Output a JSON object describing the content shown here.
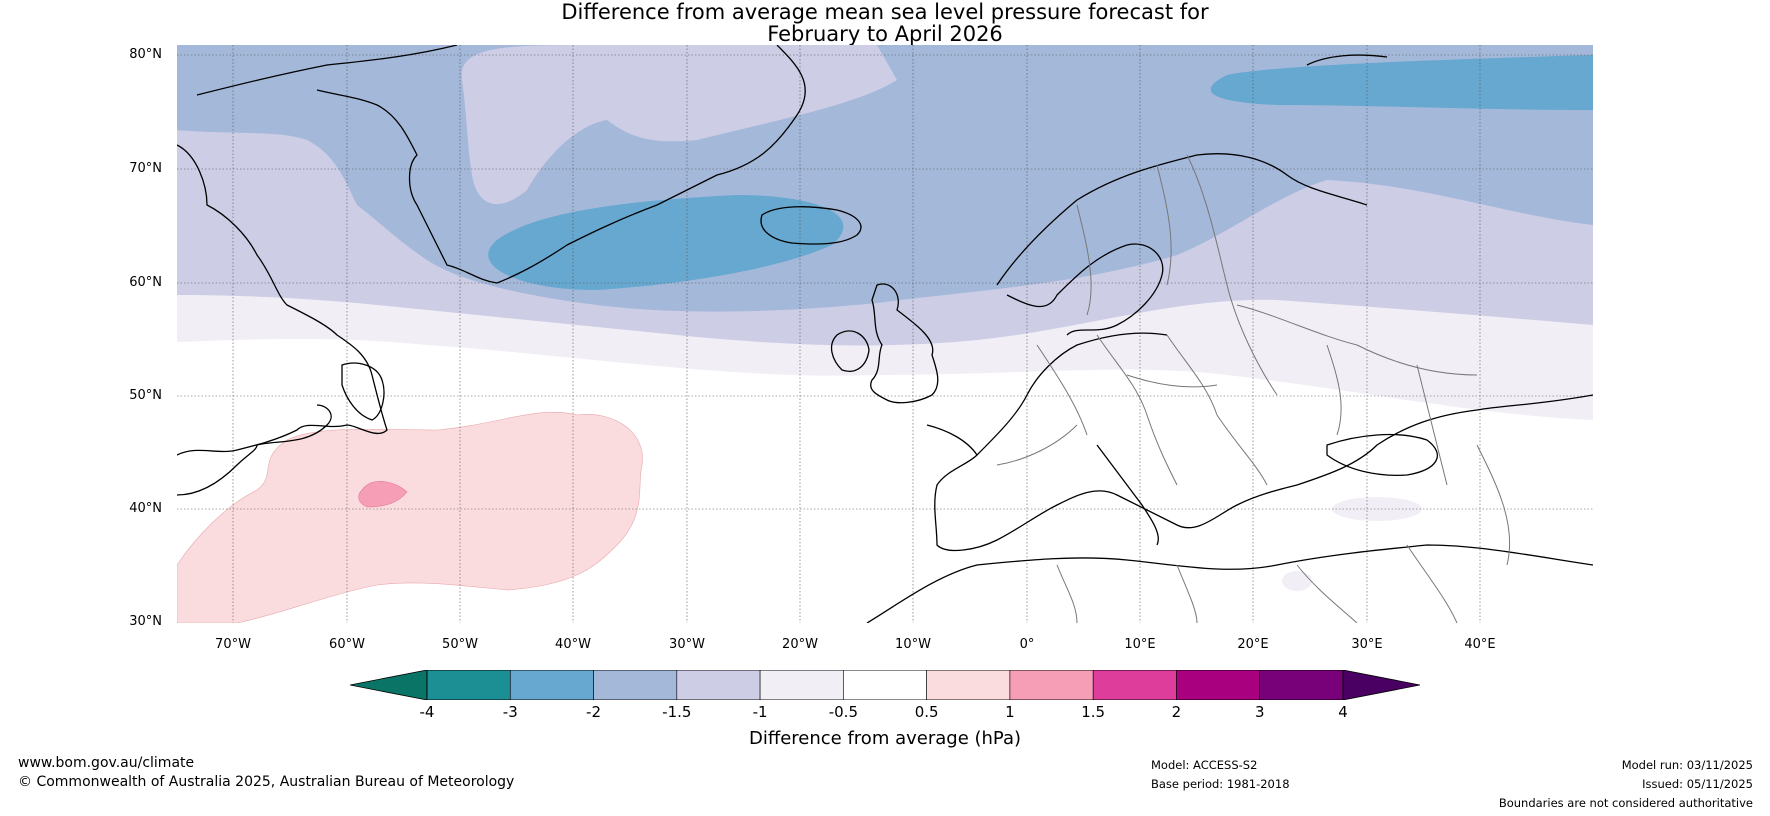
{
  "title_line1": "Difference from average mean sea level pressure forecast for",
  "title_line2": "February to April 2026",
  "lat_labels": [
    "80°N",
    "70°N",
    "60°N",
    "50°N",
    "40°N",
    "30°N"
  ],
  "lon_labels": [
    "70°W",
    "60°W",
    "50°W",
    "40°W",
    "30°W",
    "20°W",
    "10°W",
    "0°",
    "10°E",
    "20°E",
    "30°E",
    "40°E"
  ],
  "colorbar": {
    "label": "Difference from average (hPa)",
    "ticks": [
      "-4",
      "-3",
      "-2",
      "-1.5",
      "-1",
      "-0.5",
      "0.5",
      "1",
      "1.5",
      "2",
      "3",
      "4"
    ],
    "colors": [
      "#1b8f94",
      "#66a8d0",
      "#a4b8da",
      "#cdcde6",
      "#f2eef6",
      "#ffffff",
      "#fbdcde",
      "#f69eb6",
      "#df3d9c",
      "#a9007f",
      "#780078"
    ],
    "under_color": "#0a7566",
    "over_color": "#4a0063"
  },
  "footer": {
    "website": "www.bom.gov.au/climate",
    "copyright": "© Commonwealth of Australia 2025, Australian Bureau of Meteorology",
    "model": "Model: ACCESS-S2",
    "base_period": "Base period: 1981-2018",
    "model_run": "Model run: 03/11/2025",
    "issued": "Issued: 05/11/2025",
    "disclaimer": "Boundaries are not considered authoritative"
  }
}
